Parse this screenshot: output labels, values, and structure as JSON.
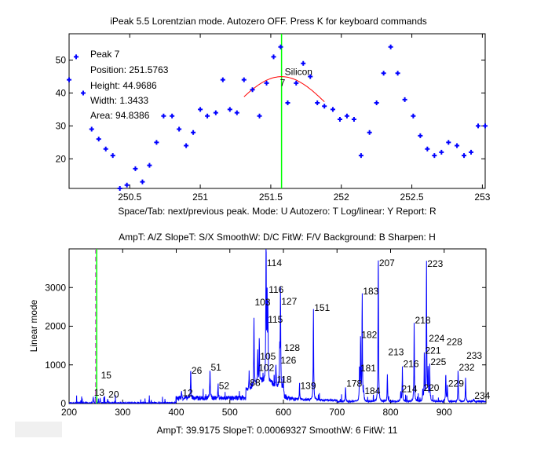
{
  "window_title": "iPeak 5.5  Lorentzian mode.     Autozero OFF.    Press K for keyboard commands",
  "top_xlabel": "Space/Tab: next/previous peak.  Mode: U  Autozero: T   Log/linear: Y   Report: R",
  "bottom_title": "AmpT: A/Z   SlopeT: S/X   SmoothW: D/C    FitW: F/V   Background: B    Sharpen: H",
  "bottom_xlabel": "AmpT: 39.9175     SlopeT: 0.00069327     SmoothW: 6     FitW: 11",
  "peak_info": {
    "peak": "Peak 7",
    "position": "Position: 251.5763",
    "height": "Height: 44.9686",
    "width": "Width: 1.3433",
    "area": "Area: 94.8386"
  },
  "colors": {
    "data": "#0000ff",
    "fit": "#ff0000",
    "cursor": "#00ff00",
    "cursor_dash": "#cc44cc"
  },
  "chart_data": [
    {
      "type": "scatter",
      "xlim": [
        250.07,
        253.02
      ],
      "ylim": [
        11,
        58
      ],
      "xticks": [
        250.5,
        251,
        251.5,
        252,
        252.5,
        253
      ],
      "xtick_labels": [
        "250.5",
        "251",
        "251.5",
        "252",
        "252.5",
        "253"
      ],
      "yticks": [
        20,
        30,
        40,
        50
      ],
      "ytick_labels": [
        "20",
        "30",
        "40",
        "50"
      ],
      "x": [
        250.07,
        250.12,
        250.17,
        250.23,
        250.28,
        250.33,
        250.38,
        250.43,
        250.48,
        250.54,
        250.59,
        250.64,
        250.69,
        250.74,
        250.8,
        250.85,
        250.9,
        250.95,
        251.0,
        251.05,
        251.11,
        251.16,
        251.21,
        251.26,
        251.31,
        251.37,
        251.42,
        251.47,
        251.52,
        251.57,
        251.62,
        251.68,
        251.73,
        251.78,
        251.83,
        251.88,
        251.94,
        251.99,
        252.04,
        252.09,
        252.14,
        252.2,
        252.25,
        252.3,
        252.35,
        252.4,
        252.45,
        252.51,
        252.56,
        252.61,
        252.66,
        252.71,
        252.76,
        252.82,
        252.87,
        252.92,
        252.97,
        253.02
      ],
      "y": [
        44,
        51,
        40,
        29,
        26,
        23,
        21,
        11,
        12,
        17,
        13,
        18,
        25,
        33,
        33,
        29,
        24,
        28,
        35,
        33,
        34,
        44,
        35,
        34,
        44,
        41,
        33,
        43,
        51,
        54,
        37,
        43,
        49,
        45,
        37,
        36,
        35,
        32,
        33,
        32,
        21,
        28,
        37,
        46,
        54,
        46,
        38,
        33,
        27,
        23,
        21,
        22,
        25,
        24,
        21,
        22,
        30,
        30
      ],
      "fit": {
        "model": "lorentzian",
        "position": 251.5763,
        "height": 44.9686,
        "width": 1.3433,
        "range": [
          251.31,
          251.88
        ]
      },
      "cursor_x": 251.5763,
      "peak_name": "Silicon",
      "peak_number": "7"
    },
    {
      "type": "line",
      "ylabel": "Linear mode",
      "xlim": [
        200,
        978
      ],
      "ylim": [
        0,
        4000
      ],
      "xticks": [
        200,
        300,
        400,
        500,
        600,
        700,
        800,
        900
      ],
      "xtick_labels": [
        "200",
        "300",
        "400",
        "500",
        "600",
        "700",
        "800",
        "900"
      ],
      "yticks": [
        0,
        1000,
        2000,
        3000
      ],
      "ytick_labels": [
        "0",
        "1000",
        "2000",
        "3000"
      ],
      "cursor_x": 251.58,
      "peaks": [
        {
          "label": "114",
          "x": 567.6,
          "y": 3990
        },
        {
          "label": "115",
          "x": 569.5,
          "y": 2050
        },
        {
          "label": "116",
          "x": 571,
          "y": 1850
        },
        {
          "label": "103",
          "x": 545,
          "y": 1770
        },
        {
          "label": "105",
          "x": 555,
          "y": 1100
        },
        {
          "label": "102",
          "x": 552,
          "y": 800
        },
        {
          "label": "126",
          "x": 593,
          "y": 1000
        },
        {
          "label": "127",
          "x": 594.5,
          "y": 2520
        },
        {
          "label": "118",
          "x": 586,
          "y": 500
        },
        {
          "label": "128",
          "x": 600,
          "y": 350
        },
        {
          "label": "139",
          "x": 630,
          "y": 330
        },
        {
          "label": "151",
          "x": 656,
          "y": 2360
        },
        {
          "label": "178",
          "x": 716,
          "y": 400
        },
        {
          "label": "181",
          "x": 742,
          "y": 790
        },
        {
          "label": "182",
          "x": 744,
          "y": 1650
        },
        {
          "label": "183",
          "x": 747,
          "y": 2780
        },
        {
          "label": "184",
          "x": 750,
          "y": 200
        },
        {
          "label": "207",
          "x": 777,
          "y": 3957
        },
        {
          "label": "213",
          "x": 794,
          "y": 725
        },
        {
          "label": "214",
          "x": 819,
          "y": 250
        },
        {
          "label": "216",
          "x": 822,
          "y": 900
        },
        {
          "label": "218",
          "x": 844,
          "y": 2030
        },
        {
          "label": "220",
          "x": 860,
          "y": 280
        },
        {
          "label": "221",
          "x": 863,
          "y": 1250
        },
        {
          "label": "223",
          "x": 867,
          "y": 3740
        },
        {
          "label": "224",
          "x": 870,
          "y": 830
        },
        {
          "label": "225",
          "x": 873,
          "y": 950
        },
        {
          "label": "228",
          "x": 903,
          "y": 745
        },
        {
          "label": "229",
          "x": 906,
          "y": 400
        },
        {
          "label": "232",
          "x": 926,
          "y": 810
        },
        {
          "label": "233",
          "x": 940,
          "y": 630
        },
        {
          "label": "234",
          "x": 955,
          "y": 80
        },
        {
          "label": "26",
          "x": 427,
          "y": 730
        },
        {
          "label": "51",
          "x": 463,
          "y": 815
        },
        {
          "label": "12",
          "x": 410,
          "y": 150
        },
        {
          "label": "13",
          "x": 245,
          "y": 160
        },
        {
          "label": "15",
          "x": 258,
          "y": 120
        },
        {
          "label": "20",
          "x": 272,
          "y": 110
        },
        {
          "label": "52",
          "x": 478,
          "y": 330
        },
        {
          "label": "88",
          "x": 536,
          "y": 420
        }
      ]
    }
  ]
}
